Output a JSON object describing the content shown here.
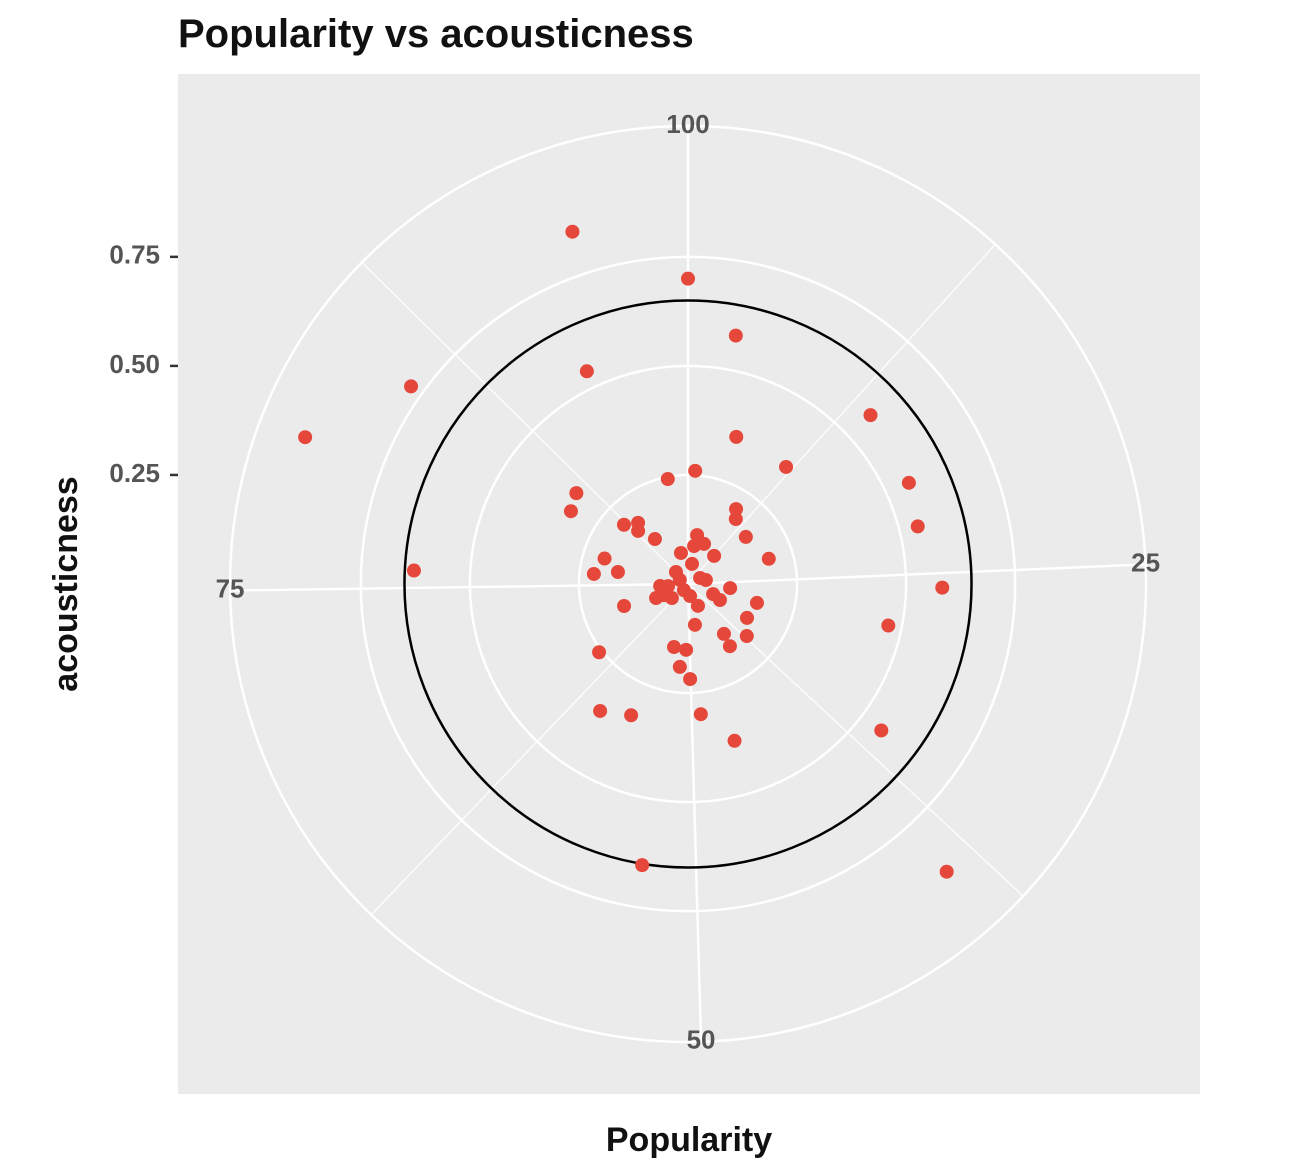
{
  "chart_data": {
    "type": "scatter",
    "coord": "polar",
    "title": "Popularity vs acousticness",
    "x_label": "Popularity",
    "y_label": "acousticness",
    "xlim": [
      0.9,
      100
    ],
    "xticks": [
      25,
      50,
      75,
      100
    ],
    "x_minor_ticks": [
      12.5,
      37.5,
      62.5,
      87.5
    ],
    "ylim": [
      0,
      1.05
    ],
    "yticks": [
      {
        "value": 0.25,
        "label": "0.25"
      },
      {
        "value": 0.5,
        "label": "0.50"
      },
      {
        "value": 0.75,
        "label": "0.75"
      }
    ],
    "grid": true,
    "reference_circle": {
      "value": 0.65,
      "color": "#000000"
    },
    "series": [
      {
        "color": "#e5483b",
        "x": [
          95.0,
          100,
          3.9,
          93.0,
          85.0,
          81.0,
          13.9,
          5.9,
          11.9,
          1.9,
          97.0,
          18.9,
          86.0,
          84.0,
          9.9,
          10.9,
          21.8,
          14.9,
          87.0,
          89.2,
          88.1,
          90.0,
          20.9,
          76.0,
          79.9,
          76.9,
          77.9,
          25.9,
          70.0,
          29.9,
          28.9,
          33.9,
          37.1,
          40.6,
          41.1,
          47.8,
          64.9,
          53.9,
          50.9,
          52.0,
          50.1,
          60.0,
          56.9,
          48.9,
          45.9,
          35.9,
          53.0,
          38.9,
          3.8,
          6.9,
          12.7,
          96.5,
          3.4,
          27.2,
          33.0,
          31.7,
          43.7,
          74.1,
          68.7,
          63.9,
          73.6,
          87.6,
          18.4,
          59.7,
          22.2,
          4.0,
          68.4,
          82.5,
          47.8
        ],
        "values": [
          0.85,
          0.7,
          0.58,
          0.54,
          0.78,
          0.94,
          0.57,
          0.355,
          0.35,
          0.26,
          0.245,
          0.557,
          0.33,
          0.316,
          0.204,
          0.185,
          0.543,
          0.171,
          0.2,
          0.181,
          0.167,
          0.128,
          0.194,
          0.629,
          0.2,
          0.217,
          0.163,
          0.583,
          0.155,
          0.164,
          0.469,
          0.156,
          0.18,
          0.141,
          0.172,
          0.095,
          0.257,
          0.148,
          0.151,
          0.191,
          0.218,
          0.354,
          0.328,
          0.3,
          0.375,
          0.556,
          0.653,
          0.887,
          0.114,
          0.099,
          0.088,
          0.073,
          0.088,
          0.097,
          0.082,
          0.062,
          0.055,
          0.064,
          0.08,
          0.049,
          0.046,
          0.039,
          0.031,
          0.017,
          0.042,
          0.047,
          0.061,
          0.021,
          0.028
        ]
      }
    ]
  }
}
